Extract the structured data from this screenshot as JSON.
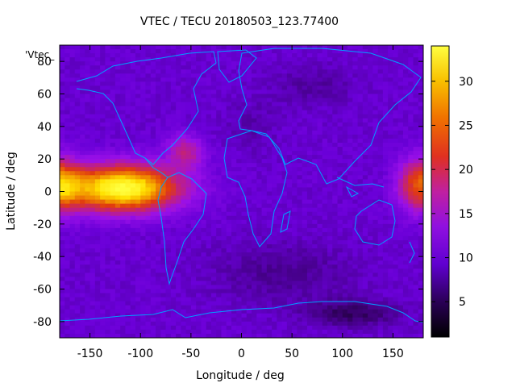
{
  "chart_data": {
    "type": "heatmap",
    "title": "VTEC / TECU 20180503_123.77400",
    "xlabel": "Longitude / deg",
    "ylabel": "Latitude / deg",
    "key_label": "'Vtec_",
    "xlim": [
      -180,
      180
    ],
    "ylim": [
      -90,
      90
    ],
    "xticks": [
      -150,
      -100,
      -50,
      0,
      50,
      100,
      150
    ],
    "yticks": [
      -80,
      -60,
      -40,
      -20,
      0,
      20,
      40,
      60,
      80
    ],
    "colorbar": {
      "min": 1,
      "max": 34,
      "ticks": [
        5,
        10,
        15,
        20,
        25,
        30
      ]
    },
    "colormap": [
      "#000000",
      "#3a0070",
      "#6a00d8",
      "#9a10e8",
      "#c02080",
      "#e03a10",
      "#f08c00",
      "#ffe000",
      "#ffff40"
    ],
    "coastline_color": "#00a0ff",
    "features": [
      {
        "name": "equatorial-anomaly-pacific",
        "lon": -118,
        "lat": 2,
        "vtec": 34
      },
      {
        "name": "equatorial-anomaly-east-edge",
        "lon": 178,
        "lat": 4,
        "vtec": 24
      },
      {
        "name": "southern-polar-minimum",
        "lon": 110,
        "lat": -75,
        "vtec": 1
      },
      {
        "name": "background",
        "vtec": 9
      }
    ],
    "grid": false,
    "legend": "top-left"
  }
}
